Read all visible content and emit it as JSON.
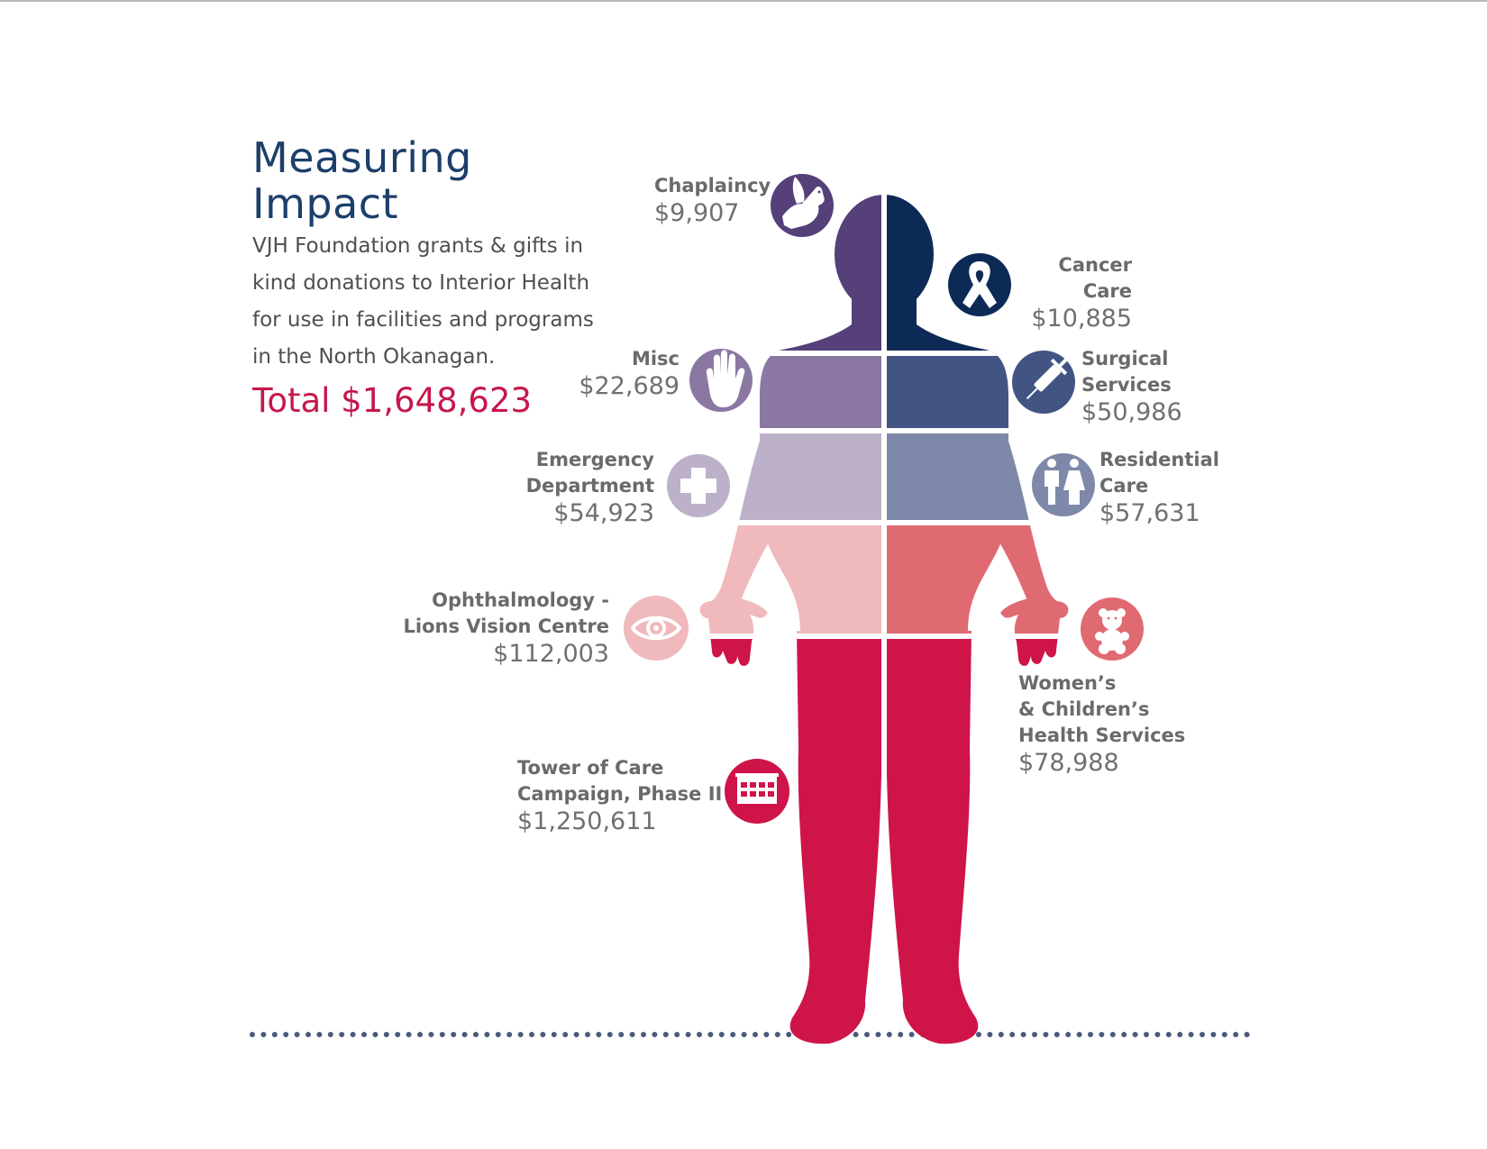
{
  "header": {
    "title": "Measuring Impact",
    "description_lines": [
      "VJH Foundation grants & gifts in",
      "kind donations to Interior Health",
      "for use in facilities and programs",
      "in the North Okanagan."
    ],
    "total": "Total $1,648,623"
  },
  "categories": [
    {
      "name_lines": [
        "Chaplaincy"
      ],
      "amount": "$9,907",
      "icon": "dove-icon",
      "color": "#55407a"
    },
    {
      "name_lines": [
        "Cancer Care"
      ],
      "amount": "$10,885",
      "icon": "ribbon-icon",
      "color": "#0d2a57"
    },
    {
      "name_lines": [
        "Misc"
      ],
      "amount": "$22,689",
      "icon": "hand-icon",
      "color": "#8a78a2"
    },
    {
      "name_lines": [
        "Surgical",
        "Services"
      ],
      "amount": "$50,986",
      "icon": "syringe-icon",
      "color": "#425482"
    },
    {
      "name_lines": [
        "Emergency",
        "Department"
      ],
      "amount": "$54,923",
      "icon": "medical-cross-icon",
      "color": "#bcb1c9"
    },
    {
      "name_lines": [
        "Residential",
        "Care"
      ],
      "amount": "$57,631",
      "icon": "people-icon",
      "color": "#7e89aa"
    },
    {
      "name_lines": [
        "Ophthalmology -",
        "Lions Vision Centre"
      ],
      "amount": "$112,003",
      "icon": "eye-icon",
      "color": "#f0b9bb"
    },
    {
      "name_lines": [
        "Women’s",
        "& Children’s",
        "Health Services"
      ],
      "amount": "$78,988",
      "icon": "teddy-bear-icon",
      "color": "#e06a72"
    },
    {
      "name_lines": [
        "Tower of Care",
        "Campaign, Phase II"
      ],
      "amount": "$1,250,611",
      "icon": "building-icon",
      "color": "#cf1449"
    }
  ],
  "colors": {
    "title": "#1d3f6a",
    "total": "#c5184a",
    "text": "#6a6a6a",
    "dots": "#4a5a7a"
  }
}
